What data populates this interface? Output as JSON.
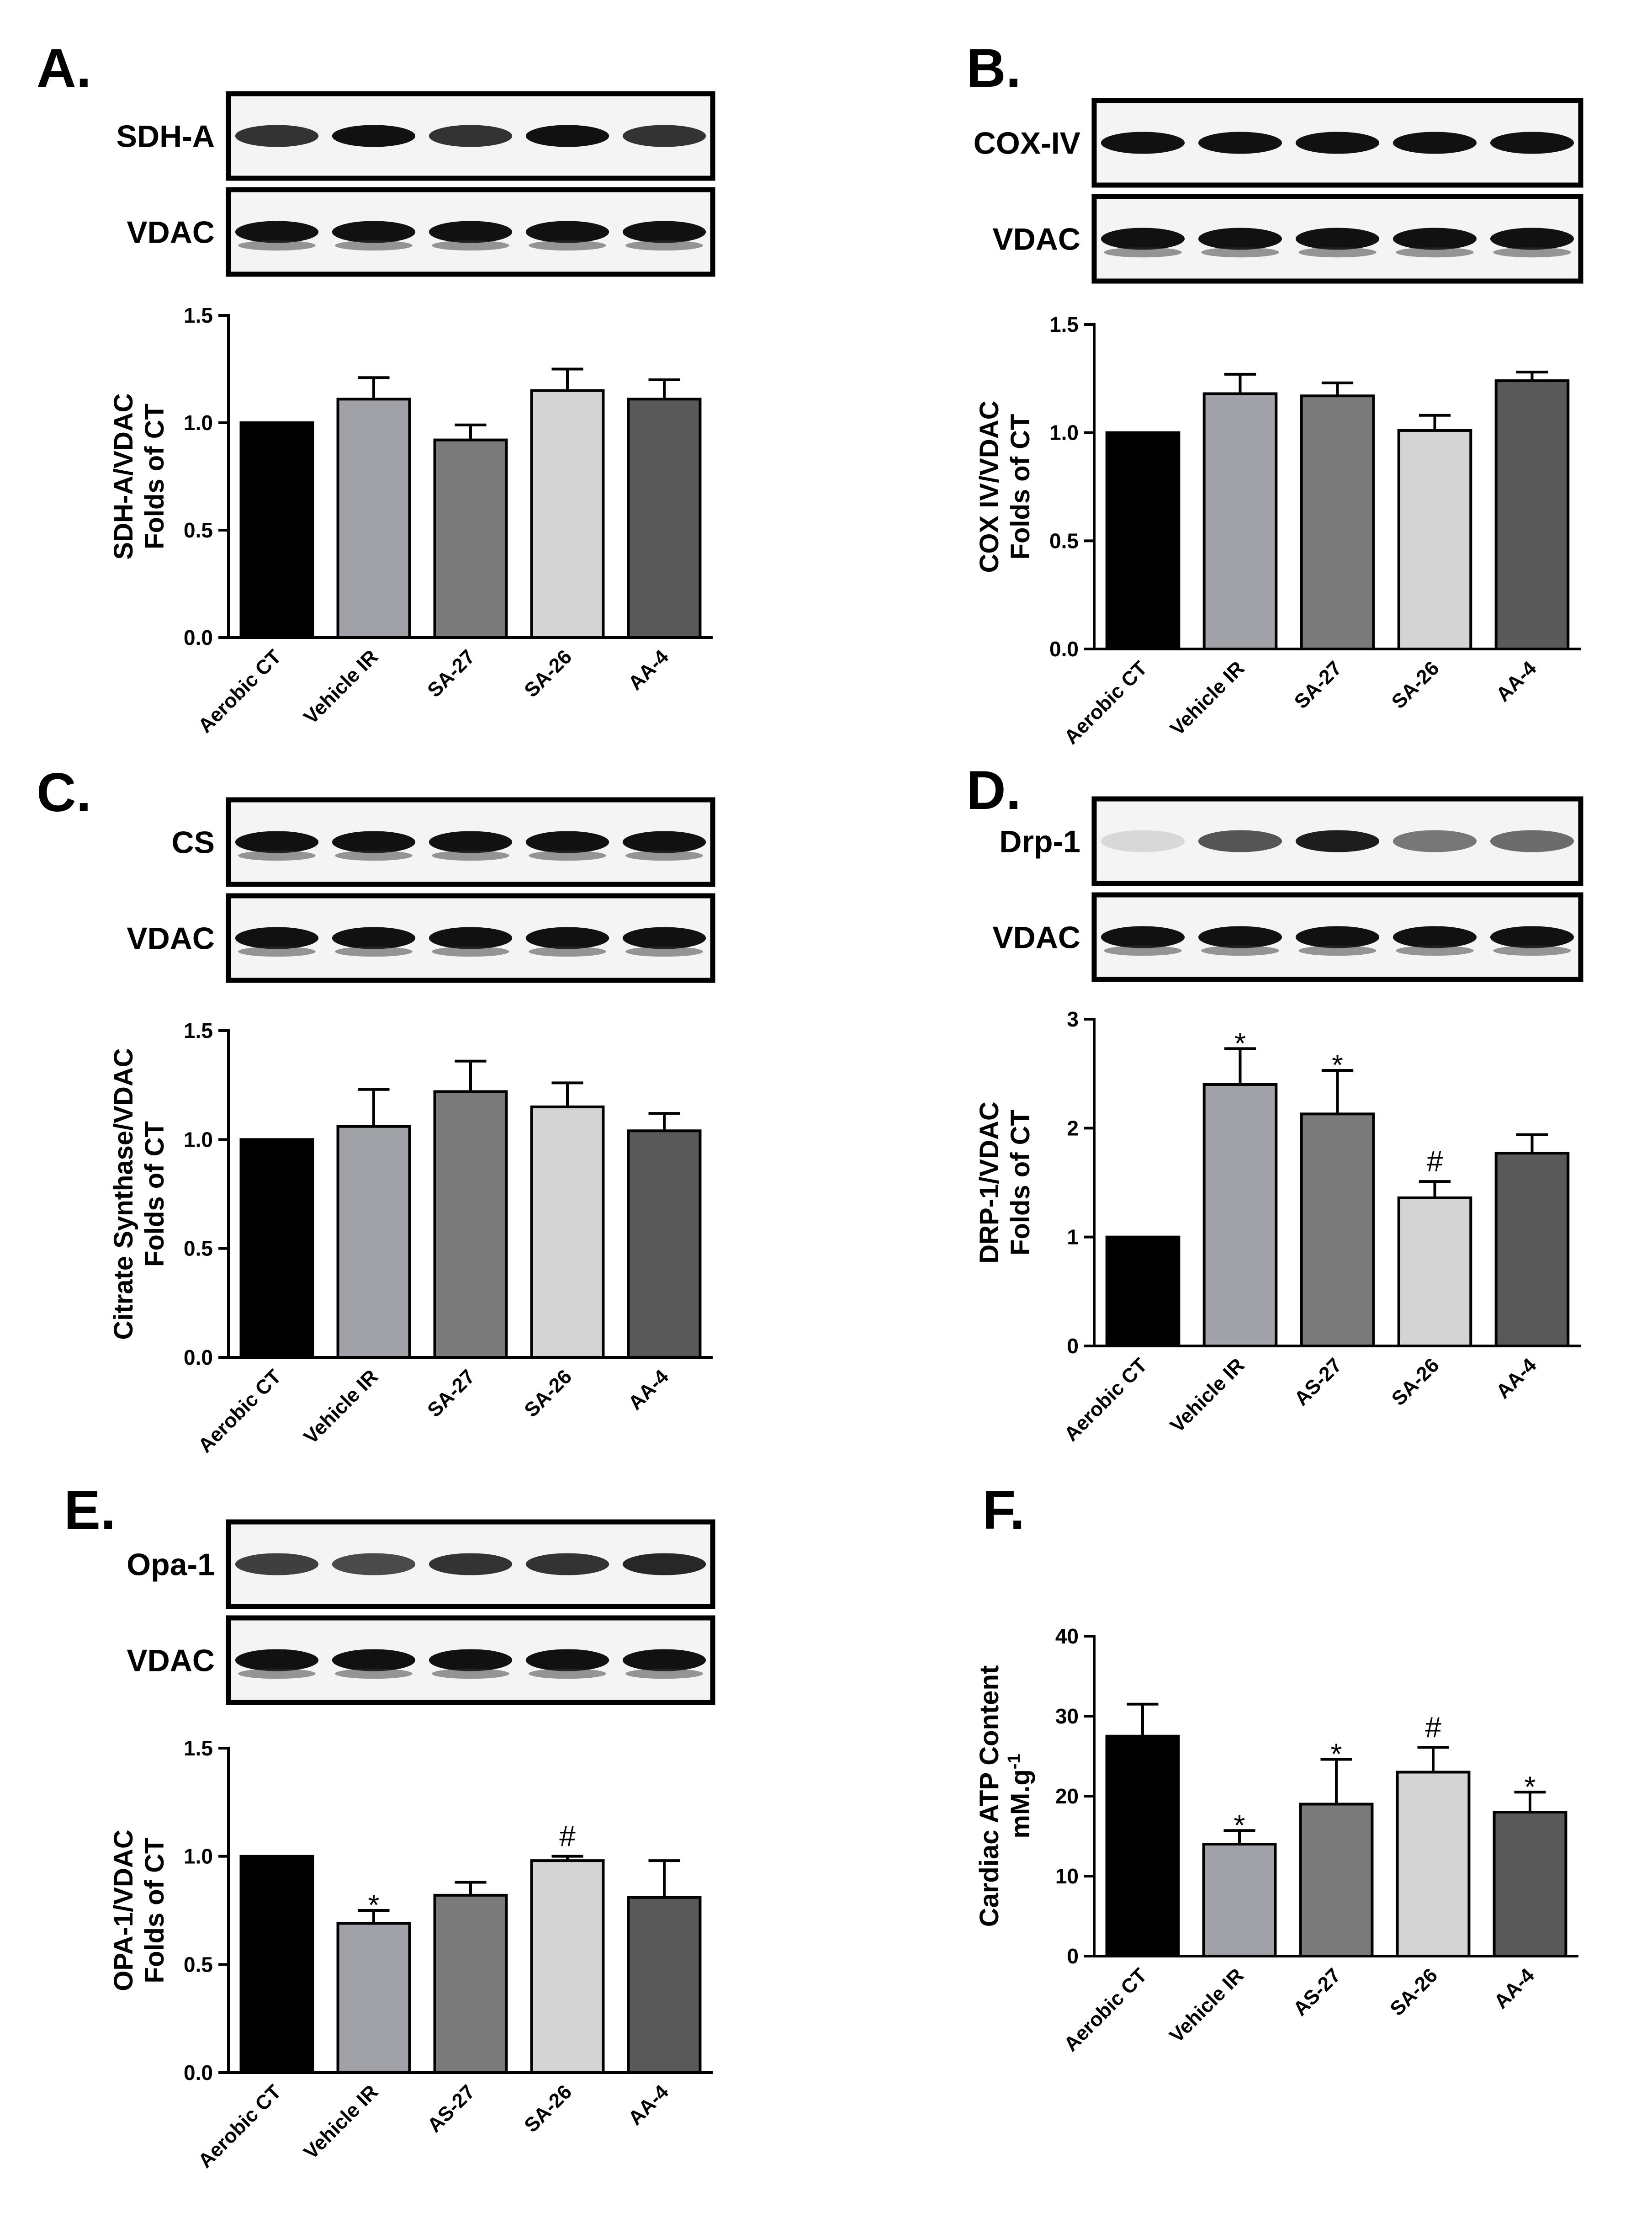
{
  "chart_data": [
    {
      "panel": "A.",
      "type": "bar",
      "blots": [
        "SDH-A",
        "VDAC"
      ],
      "ylabel": [
        "SDH-A/VDAC",
        "Folds of CT"
      ],
      "categories": [
        "Aerobic CT",
        "Vehicle IR",
        "SA-27",
        "SA-26",
        "AA-4"
      ],
      "values": [
        1.0,
        1.11,
        0.92,
        1.15,
        1.11
      ],
      "errors": [
        0,
        0.1,
        0.07,
        0.1,
        0.09
      ],
      "annotations": [
        "",
        "",
        "",
        "",
        ""
      ],
      "ylim": [
        0,
        1.5
      ],
      "yticks": [
        "0.0",
        "0.5",
        "1.0",
        "1.5"
      ],
      "bar_colors": [
        "#000000",
        "#a1a1a8",
        "#7a7a7a",
        "#d4d4d4",
        "#595959"
      ]
    },
    {
      "panel": "B.",
      "type": "bar",
      "blots": [
        "COX-IV",
        "VDAC"
      ],
      "ylabel": [
        "COX IV/VDAC",
        "Folds of CT"
      ],
      "categories": [
        "Aerobic CT",
        "Vehicle IR",
        "SA-27",
        "SA-26",
        "AA-4"
      ],
      "values": [
        1.0,
        1.18,
        1.17,
        1.01,
        1.24
      ],
      "errors": [
        0,
        0.09,
        0.06,
        0.07,
        0.04
      ],
      "annotations": [
        "",
        "",
        "",
        "",
        ""
      ],
      "ylim": [
        0,
        1.5
      ],
      "yticks": [
        "0.0",
        "0.5",
        "1.0",
        "1.5"
      ],
      "bar_colors": [
        "#000000",
        "#a1a1a8",
        "#7a7a7a",
        "#d4d4d4",
        "#595959"
      ]
    },
    {
      "panel": "C.",
      "type": "bar",
      "blots": [
        "CS",
        "VDAC"
      ],
      "ylabel": [
        "Citrate Synthase/VDAC",
        "Folds of CT"
      ],
      "categories": [
        "Aerobic CT",
        "Vehicle IR",
        "SA-27",
        "SA-26",
        "AA-4"
      ],
      "values": [
        1.0,
        1.06,
        1.22,
        1.15,
        1.04
      ],
      "errors": [
        0,
        0.17,
        0.14,
        0.11,
        0.08
      ],
      "annotations": [
        "",
        "",
        "",
        "",
        ""
      ],
      "ylim": [
        0,
        1.5
      ],
      "yticks": [
        "0.0",
        "0.5",
        "1.0",
        "1.5"
      ],
      "bar_colors": [
        "#000000",
        "#a1a1a8",
        "#7a7a7a",
        "#d4d4d4",
        "#595959"
      ]
    },
    {
      "panel": "D.",
      "type": "bar",
      "blots": [
        "Drp-1",
        "VDAC"
      ],
      "ylabel": [
        "DRP-1/VDAC",
        "Folds of CT"
      ],
      "categories": [
        "Aerobic CT",
        "Vehicle IR",
        "AS-27",
        "SA-26",
        "AA-4"
      ],
      "values": [
        1.0,
        2.4,
        2.13,
        1.36,
        1.77
      ],
      "errors": [
        0,
        0.33,
        0.4,
        0.15,
        0.17
      ],
      "annotations": [
        "",
        "*",
        "*",
        "#",
        ""
      ],
      "ylim": [
        0,
        3
      ],
      "yticks": [
        "0",
        "1",
        "2",
        "3"
      ],
      "bar_colors": [
        "#000000",
        "#a1a1a8",
        "#7a7a7a",
        "#d4d4d4",
        "#595959"
      ]
    },
    {
      "panel": "E.",
      "type": "bar",
      "blots": [
        "Opa-1",
        "VDAC"
      ],
      "ylabel": [
        "OPA-1/VDAC",
        "Folds of CT"
      ],
      "categories": [
        "Aerobic CT",
        "Vehicle IR",
        "AS-27",
        "SA-26",
        "AA-4"
      ],
      "values": [
        1.0,
        0.69,
        0.82,
        0.98,
        0.81
      ],
      "errors": [
        0,
        0.06,
        0.06,
        0.02,
        0.17
      ],
      "annotations": [
        "",
        "*",
        "",
        "#",
        ""
      ],
      "ylim": [
        0,
        1.5
      ],
      "yticks": [
        "0.0",
        "0.5",
        "1.0",
        "1.5"
      ],
      "bar_colors": [
        "#000000",
        "#a1a1a8",
        "#7a7a7a",
        "#d4d4d4",
        "#595959"
      ]
    },
    {
      "panel": "F.",
      "type": "bar",
      "blots": [],
      "ylabel": [
        "Cardiac ATP Content",
        "mM.g-1"
      ],
      "categories": [
        "Aerobic CT",
        "Vehicle IR",
        "AS-27",
        "SA-26",
        "AA-4"
      ],
      "values": [
        27.5,
        14.0,
        19.0,
        23.0,
        18.0
      ],
      "errors": [
        4.0,
        1.7,
        5.6,
        3.1,
        2.5
      ],
      "annotations": [
        "",
        "*",
        "*",
        "#",
        "*"
      ],
      "ylim": [
        0,
        40
      ],
      "yticks": [
        "0",
        "10",
        "20",
        "30",
        "40"
      ],
      "bar_colors": [
        "#000000",
        "#a1a1a8",
        "#7a7a7a",
        "#d4d4d4",
        "#595959"
      ]
    }
  ]
}
